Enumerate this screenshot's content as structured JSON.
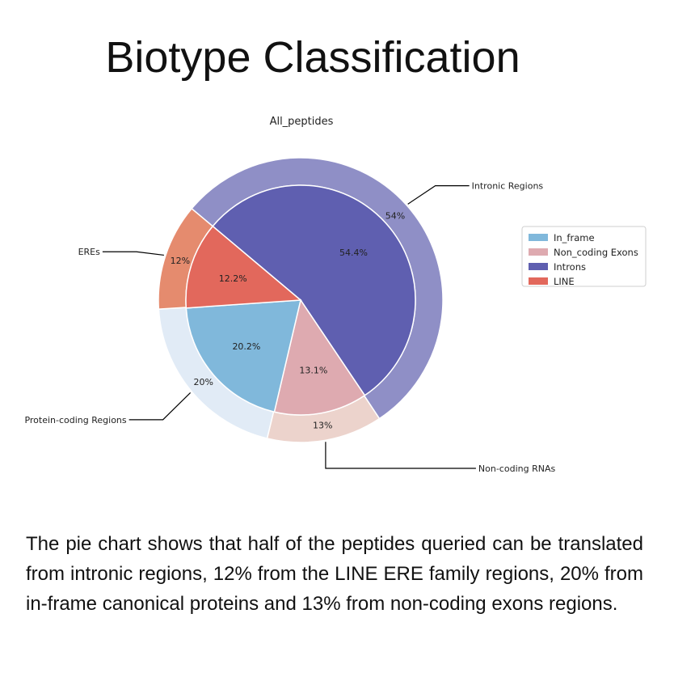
{
  "slide": {
    "title": "Biotype Classification",
    "caption": "The pie chart shows that half of the peptides queried can be translated from intronic regions, 12% from the LINE ERE family regions, 20% from in-frame canonical proteins and 13% from non-coding exons regions."
  },
  "chart_data": {
    "type": "pie",
    "title": "All_peptides",
    "legend_placement": "right",
    "outer_ring": {
      "slices": [
        {
          "name": "Intronic Regions",
          "value": 54,
          "label": "54%",
          "color": "#8f8fc6"
        },
        {
          "name": "Non-coding RNAs",
          "value": 13,
          "label": "13%",
          "color": "#ecd3cc"
        },
        {
          "name": "Protein-coding Regions",
          "value": 20,
          "label": "20%",
          "color": "#e1ebf6"
        },
        {
          "name": "EREs",
          "value": 12,
          "label": "12%",
          "color": "#e58b6e"
        }
      ]
    },
    "inner_pie": {
      "slices": [
        {
          "name": "Introns",
          "value": 54.4,
          "label": "54.4%",
          "color": "#5f5fb0"
        },
        {
          "name": "Non_coding Exons",
          "value": 13.1,
          "label": "13.1%",
          "color": "#deaab0"
        },
        {
          "name": "In_frame",
          "value": 20.2,
          "label": "20.2%",
          "color": "#80b8db"
        },
        {
          "name": "LINE",
          "value": 12.2,
          "label": "12.2%",
          "color": "#e2685c"
        }
      ]
    },
    "legend": [
      {
        "name": "In_frame",
        "color": "#80b8db"
      },
      {
        "name": "Non_coding Exons",
        "color": "#deaab0"
      },
      {
        "name": "Introns",
        "color": "#5f5fb0"
      },
      {
        "name": "LINE",
        "color": "#e2685c"
      }
    ]
  }
}
